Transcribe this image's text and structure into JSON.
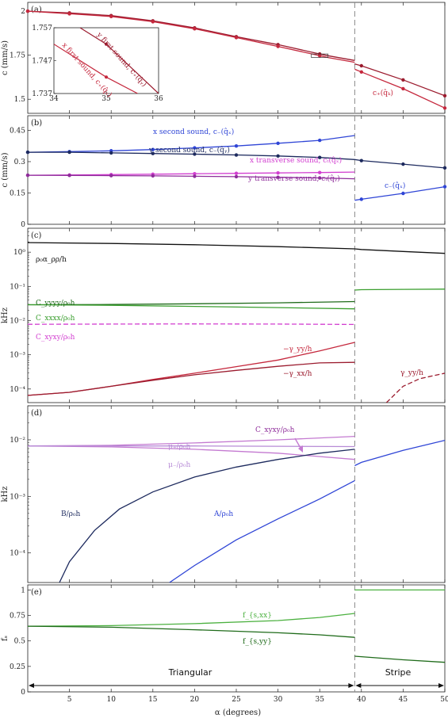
{
  "colors": {
    "red": "#c5283d",
    "red_dark": "#9b1b2e",
    "blue_dark": "#1d2a5e",
    "blue": "#2f45d6",
    "magenta": "#d23fd0",
    "purple": "#8e2c9a",
    "black": "#111111",
    "green": "#3a9e2e",
    "green_dark": "#1f6b1a",
    "green_light": "#4cb140",
    "lilac": "#c47ad1",
    "lilac_light": "#b78bd6",
    "dashed_gray": "#888888"
  },
  "xaxis": {
    "label": "α (degrees)",
    "ticks": [
      "5",
      "10",
      "15",
      "20",
      "25",
      "30",
      "35",
      "40",
      "45",
      "50"
    ]
  },
  "boundary": {
    "alpha": 39.2,
    "left_label": "Triangular",
    "right_label": "Stripe"
  },
  "chart_data": [
    {
      "id": "a",
      "panel": "(a)",
      "type": "line",
      "ylabel": "c (mm/s)",
      "xlim": [
        0,
        50
      ],
      "ylim": [
        1.42,
        2.05
      ],
      "yticks": [
        "1.5",
        "1.75",
        "2"
      ],
      "series": [
        {
          "color": "dark_red",
          "markers": true,
          "x": [
            0,
            5,
            10,
            15,
            20,
            25,
            30,
            35,
            36,
            39.2
          ],
          "y": [
            2.0,
            1.99,
            1.975,
            1.945,
            1.905,
            1.855,
            1.81,
            1.757,
            1.747,
            1.72
          ]
        },
        {
          "color": "red",
          "markers": true,
          "x": [
            0,
            5,
            10,
            15,
            20,
            25,
            30,
            35,
            36,
            39.2
          ],
          "y": [
            2.0,
            1.985,
            1.97,
            1.94,
            1.9,
            1.85,
            1.8,
            1.747,
            1.737,
            1.71
          ]
        },
        {
          "color": "dark_red",
          "markers": true,
          "x": [
            39.2,
            40,
            45,
            50
          ],
          "y": [
            1.7,
            1.69,
            1.61,
            1.52
          ]
        },
        {
          "color": "red",
          "markers": true,
          "x": [
            39.2,
            40,
            45,
            50
          ],
          "y": [
            1.67,
            1.655,
            1.56,
            1.45
          ]
        }
      ],
      "annotations": [
        "c₊(q̂ₖ)"
      ],
      "inset": {
        "xlim": [
          34,
          36
        ],
        "ylim": [
          1.737,
          1.757
        ],
        "xticks": [
          "34",
          "35",
          "36"
        ],
        "yticks": [
          "1.737",
          "1.747",
          "1.757"
        ],
        "series_labels": [
          "y first sound, c₊(q̂ᵧ)",
          "x first sound, c₊(q̂ₓ)"
        ],
        "series": [
          {
            "color": "dark_red",
            "x": [
              34.5,
              35,
              36
            ],
            "y": [
              1.757,
              1.752,
              1.737
            ]
          },
          {
            "color": "red",
            "x": [
              34,
              35,
              35.6
            ],
            "y": [
              1.752,
              1.742,
              1.737
            ]
          }
        ]
      }
    },
    {
      "id": "b",
      "panel": "(b)",
      "type": "line",
      "ylabel": "c (mm/s)",
      "xlim": [
        0,
        50
      ],
      "ylim": [
        0,
        0.52
      ],
      "yticks": [
        "0",
        "0.15",
        "0.3",
        "0.45"
      ],
      "series": [
        {
          "label": "x second sound, c₋(q̂ₓ)",
          "color": "blue",
          "x": [
            0,
            5,
            10,
            15,
            20,
            25,
            30,
            35,
            39.2
          ],
          "y": [
            0.345,
            0.348,
            0.352,
            0.358,
            0.366,
            0.375,
            0.388,
            0.402,
            0.425
          ]
        },
        {
          "label": "y second sound, c₋(q̂ᵧ)",
          "color": "blue_dark",
          "x": [
            0,
            5,
            10,
            15,
            20,
            25,
            30,
            35,
            39.2,
            40,
            45,
            50
          ],
          "y": [
            0.345,
            0.345,
            0.342,
            0.339,
            0.336,
            0.332,
            0.327,
            0.32,
            0.31,
            0.305,
            0.288,
            0.27
          ]
        },
        {
          "label": "x transverse sound, cₜ(q̂ₓ)",
          "color": "magenta",
          "x": [
            0,
            5,
            10,
            15,
            20,
            25,
            30,
            35,
            39.2
          ],
          "y": [
            0.235,
            0.236,
            0.238,
            0.24,
            0.242,
            0.244,
            0.246,
            0.248,
            0.25
          ]
        },
        {
          "label": "y transverse sound, cₜ(q̂ᵧ)",
          "color": "purple",
          "x": [
            0,
            5,
            10,
            15,
            20,
            25,
            30,
            35,
            39.2
          ],
          "y": [
            0.235,
            0.234,
            0.233,
            0.232,
            0.23,
            0.228,
            0.225,
            0.222,
            0.218
          ]
        },
        {
          "label": "c₋(q̂ₓ)",
          "color": "blue",
          "x": [
            39.2,
            40,
            45,
            50
          ],
          "y": [
            0.115,
            0.12,
            0.148,
            0.18
          ]
        }
      ]
    },
    {
      "id": "c",
      "panel": "(c)",
      "type": "line",
      "ylabel": "kHz",
      "yscale": "log",
      "xlim": [
        0,
        50
      ],
      "ylim": [
        4e-05,
        5
      ],
      "yticks": [
        "10⁰",
        "10⁻¹",
        "10⁻²",
        "10⁻³",
        "10⁻⁴"
      ],
      "series": [
        {
          "label": "ρ₀α_ρρ/h",
          "color": "black",
          "x": [
            0,
            10,
            20,
            30,
            39.2,
            40,
            45,
            50
          ],
          "y": [
            1.9,
            1.8,
            1.65,
            1.45,
            1.25,
            1.2,
            1.05,
            0.92
          ]
        },
        {
          "label": "C_yyyy/ρ₀h",
          "color": "green_dark",
          "x": [
            0,
            10,
            20,
            30,
            39.2
          ],
          "y": [
            0.029,
            0.0295,
            0.031,
            0.033,
            0.036
          ]
        },
        {
          "label": "C_xxxx/ρ₀h",
          "color": "green",
          "x": [
            0,
            10,
            20,
            30,
            39.2
          ],
          "y": [
            0.029,
            0.028,
            0.026,
            0.024,
            0.022
          ]
        },
        {
          "label": "",
          "color": "green",
          "x": [
            39.2,
            40,
            45,
            50
          ],
          "y": [
            0.078,
            0.08,
            0.082,
            0.083
          ]
        },
        {
          "label": "C_xyxy/ρ₀h",
          "color": "magenta",
          "dashed": true,
          "x": [
            0,
            10,
            20,
            30,
            39.2
          ],
          "y": [
            0.0078,
            0.0079,
            0.008,
            0.0079,
            0.0077
          ]
        },
        {
          "label": "−γ_yy/h",
          "color": "red",
          "x": [
            0,
            5,
            10,
            15,
            20,
            25,
            30,
            35,
            39.2
          ],
          "y": [
            6.5e-05,
            8e-05,
            0.00012,
            0.00019,
            0.00029,
            0.00045,
            0.0007,
            0.0013,
            0.0023
          ]
        },
        {
          "label": "−γ_xx/h",
          "color": "red_dark",
          "x": [
            0,
            5,
            10,
            15,
            20,
            25,
            30,
            35,
            39.2
          ],
          "y": [
            6.5e-05,
            8e-05,
            0.00012,
            0.00018,
            0.00026,
            0.00035,
            0.00046,
            0.00058,
            0.0006
          ]
        },
        {
          "label": "",
          "color": "red_dark",
          "x": [
            39.2
          ],
          "y": [
            0.00045
          ]
        },
        {
          "label": "γ_yy/h",
          "color": "red_dark",
          "dashed": true,
          "x": [
            43,
            45,
            47,
            50
          ],
          "y": [
            4e-05,
            0.00012,
            0.0002,
            0.00029
          ]
        }
      ]
    },
    {
      "id": "d",
      "panel": "(d)",
      "type": "line",
      "ylabel": "kHz",
      "yscale": "log",
      "xlim": [
        0,
        50
      ],
      "ylim": [
        3e-05,
        0.04
      ],
      "yticks": [
        "10⁻²",
        "10⁻³",
        "10⁻⁴"
      ],
      "series": [
        {
          "label": "μ₊/ρ₀h",
          "color": "lilac",
          "x": [
            0,
            10,
            20,
            30,
            39.2
          ],
          "y": [
            0.0078,
            0.008,
            0.0088,
            0.01,
            0.0115
          ]
        },
        {
          "label": "μ₋/ρ₀h",
          "color": "lilac",
          "x": [
            0,
            10,
            20,
            30,
            39.2
          ],
          "y": [
            0.0078,
            0.0075,
            0.0068,
            0.0058,
            0.0045
          ]
        },
        {
          "label": "C_xyxy/ρ₀h",
          "color": "lilac_light",
          "x": [
            0,
            10,
            20,
            30,
            39.2
          ],
          "y": [
            0.0078,
            0.0078,
            0.0078,
            0.0077,
            0.0076
          ]
        },
        {
          "label": "B/ρ₀h",
          "color": "blue_dark",
          "x": [
            3.8,
            5,
            8,
            11,
            15,
            20,
            25,
            30,
            35,
            39.2
          ],
          "y": [
            3e-05,
            7e-05,
            0.00025,
            0.0006,
            0.0012,
            0.0022,
            0.0033,
            0.0045,
            0.0058,
            0.0068
          ]
        },
        {
          "label": "A/ρ₀h",
          "color": "blue",
          "x": [
            17,
            20,
            25,
            30,
            35,
            39.2
          ],
          "y": [
            3e-05,
            6e-05,
            0.00017,
            0.0004,
            0.0009,
            0.0019
          ]
        },
        {
          "label": "",
          "color": "blue",
          "x": [
            39.2,
            40,
            45,
            50
          ],
          "y": [
            0.0035,
            0.004,
            0.0065,
            0.0098
          ]
        }
      ]
    },
    {
      "id": "e",
      "panel": "(e)",
      "type": "line",
      "ylabel": "fₛ",
      "xlim": [
        0,
        50
      ],
      "ylim": [
        0,
        1.05
      ],
      "yticks": [
        "0",
        "0.25",
        "0.5",
        "0.75",
        "1"
      ],
      "series": [
        {
          "label": "f_{s,xx}",
          "color": "green_light",
          "x": [
            0,
            10,
            20,
            30,
            35,
            39.2
          ],
          "y": [
            0.645,
            0.65,
            0.67,
            0.7,
            0.73,
            0.77
          ]
        },
        {
          "label": "f_{s,yy}",
          "color": "green_dark",
          "x": [
            0,
            10,
            20,
            30,
            35,
            39.2
          ],
          "y": [
            0.645,
            0.635,
            0.61,
            0.58,
            0.56,
            0.535
          ]
        },
        {
          "label": "",
          "color": "green_light",
          "x": [
            39.2,
            50
          ],
          "y": [
            1.0,
            1.0
          ]
        },
        {
          "label": "",
          "color": "green_dark",
          "x": [
            39.2,
            40,
            45,
            50
          ],
          "y": [
            0.35,
            0.345,
            0.315,
            0.29
          ]
        }
      ]
    }
  ]
}
